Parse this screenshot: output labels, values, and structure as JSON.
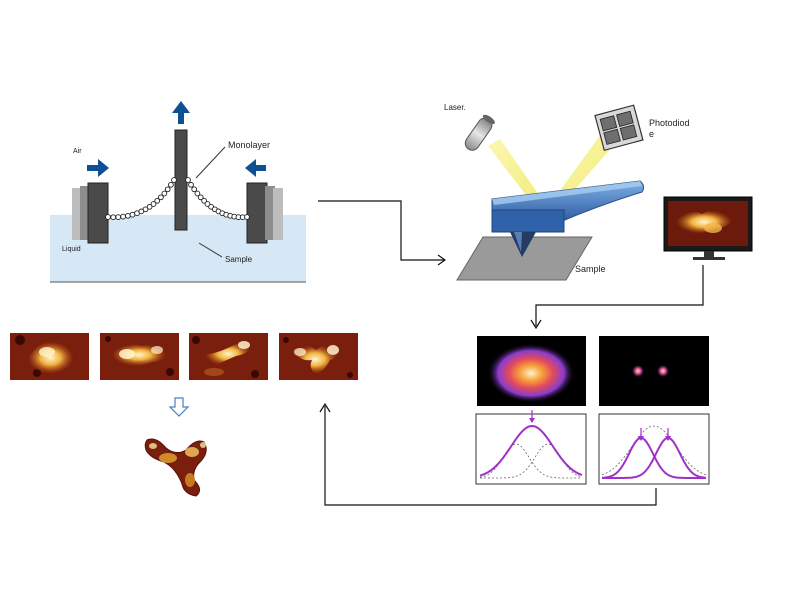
{
  "labels": {
    "air": "Air",
    "liquid": "Liquid",
    "monolayer": "Monolayer",
    "sample_trough": "Sample",
    "laser": "Laser.",
    "photodiode_line1": "Photodiod",
    "photodiode_line2": "e",
    "sample_afm": "Sample"
  },
  "colors": {
    "liquid": "#d6e7f5",
    "arrow_blue": "#0f4f93",
    "barrier": "#444444",
    "cantilever": "#3f6fb5",
    "laser_beam": "#f3ef7a",
    "afm_dark": "#5a0f08",
    "afm_mid": "#b23a12",
    "afm_bright": "#f6e6a0",
    "psf_purple": "#9b2bc7",
    "curve_purple": "#a12fc9"
  },
  "icons": {
    "up_arrow": "arrow-up-icon",
    "right_arrow": "arrow-right-icon",
    "left_arrow": "arrow-left-icon",
    "hollow_down_arrow": "hollow-arrow-down-icon",
    "monitor": "monitor-icon"
  }
}
